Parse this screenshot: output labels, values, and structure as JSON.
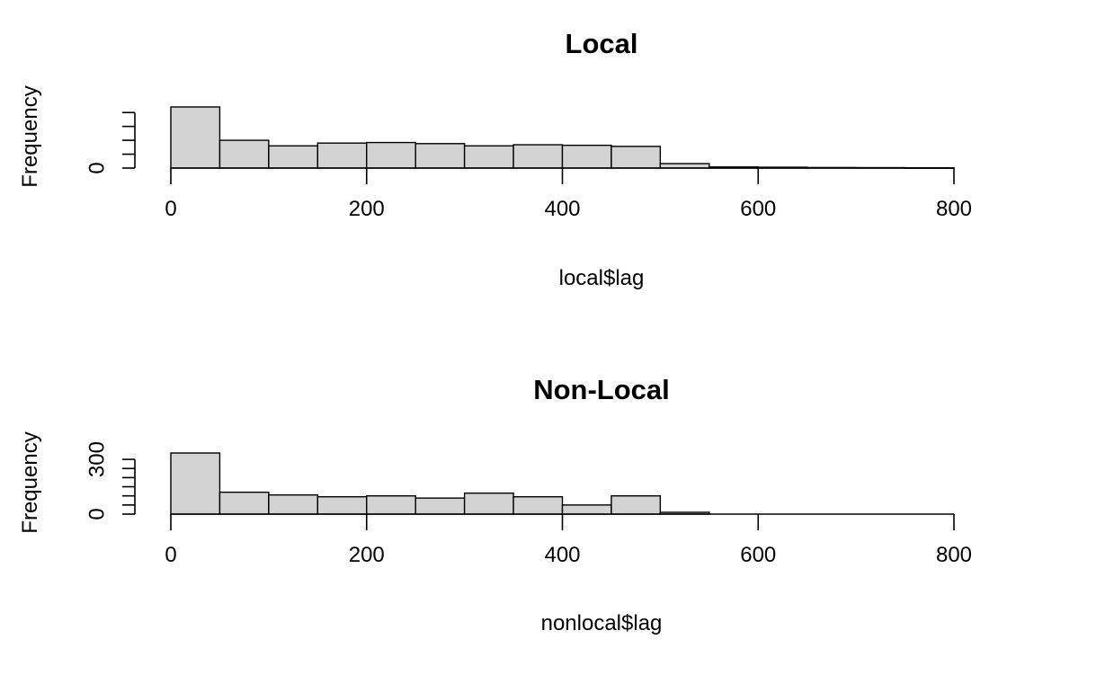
{
  "chart_data": [
    {
      "type": "bar",
      "title": "Local",
      "xlabel": "local$lag",
      "ylabel": "Frequency",
      "bin_width": 50,
      "bin_starts": [
        0,
        50,
        100,
        150,
        200,
        250,
        300,
        350,
        400,
        450,
        500,
        550,
        600,
        650,
        700,
        750
      ],
      "values": [
        1100,
        500,
        400,
        450,
        460,
        440,
        400,
        420,
        410,
        390,
        80,
        20,
        15,
        10,
        8,
        5
      ],
      "xlim": [
        0,
        800
      ],
      "ylim": [
        0,
        1100
      ],
      "x_ticks": [
        0,
        200,
        400,
        600,
        800
      ],
      "y_ticks": [
        0,
        250,
        500,
        750,
        1000
      ],
      "y_tick_labels": [
        "0",
        "",
        "",
        "",
        ""
      ]
    },
    {
      "type": "bar",
      "title": "Non-Local",
      "xlabel": "nonlocal$lag",
      "ylabel": "Frequency",
      "bin_width": 50,
      "bin_starts": [
        0,
        50,
        100,
        150,
        200,
        250,
        300,
        350,
        400,
        450,
        500
      ],
      "values": [
        335,
        120,
        105,
        95,
        100,
        88,
        115,
        95,
        50,
        100,
        10
      ],
      "xlim": [
        0,
        800
      ],
      "ylim": [
        0,
        335
      ],
      "x_ticks": [
        0,
        200,
        400,
        600,
        800
      ],
      "y_ticks": [
        0,
        50,
        100,
        150,
        200,
        250,
        300
      ],
      "y_tick_labels": [
        "0",
        "",
        "",
        "",
        "",
        "",
        "300"
      ]
    }
  ]
}
